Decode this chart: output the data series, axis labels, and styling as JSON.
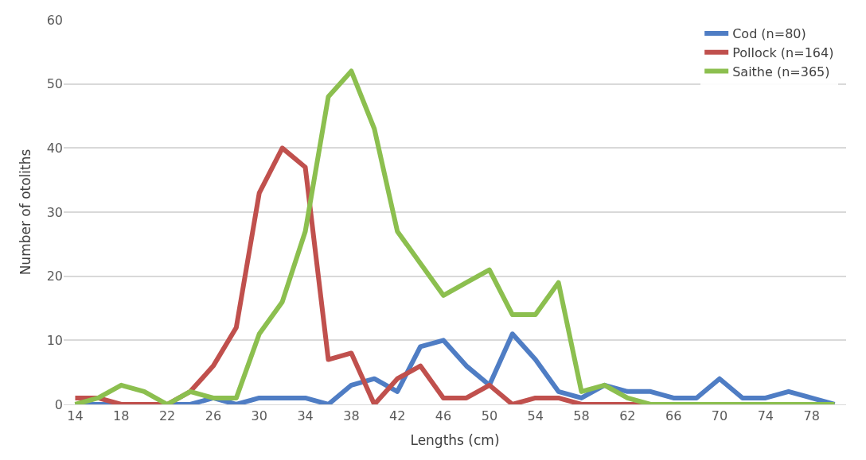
{
  "chart_data": {
    "type": "line",
    "xlabel": "Lengths (cm)",
    "ylabel": "Number of otoliths",
    "x": [
      14,
      16,
      18,
      20,
      22,
      24,
      26,
      28,
      30,
      32,
      34,
      36,
      38,
      40,
      42,
      44,
      46,
      48,
      50,
      52,
      54,
      56,
      58,
      60,
      62,
      64,
      66,
      68,
      70,
      72,
      74,
      76,
      78,
      80
    ],
    "xlim": [
      13,
      81
    ],
    "xticks": [
      14,
      18,
      22,
      26,
      30,
      34,
      38,
      42,
      46,
      50,
      54,
      58,
      62,
      66,
      70,
      74,
      78
    ],
    "ylim": [
      0,
      60
    ],
    "yticks": [
      0,
      10,
      20,
      30,
      40,
      50,
      60
    ],
    "grid": "y",
    "legend": "top right",
    "marker": "none",
    "line_style": "solid",
    "series": [
      {
        "name": "Cod (n=80)",
        "color": "#4f7dc4",
        "values": [
          0,
          0,
          0,
          0,
          0,
          0,
          1,
          0,
          1,
          1,
          1,
          0,
          3,
          4,
          2,
          9,
          10,
          6,
          3,
          11,
          7,
          2,
          1,
          3,
          2,
          2,
          1,
          1,
          4,
          1,
          1,
          2,
          1,
          0
        ]
      },
      {
        "name": "Pollock (n=164)",
        "color": "#c0504d",
        "values": [
          1,
          1,
          0,
          0,
          0,
          2,
          6,
          12,
          33,
          40,
          37,
          7,
          8,
          0,
          4,
          6,
          1,
          1,
          3,
          0,
          1,
          1,
          0,
          0,
          0,
          0,
          0,
          null,
          null,
          null,
          null,
          null,
          null,
          null
        ]
      },
      {
        "name": "Saithe (n=365)",
        "color": "#8cbf4f",
        "values": [
          0,
          1,
          3,
          2,
          0,
          2,
          1,
          1,
          11,
          16,
          27,
          48,
          52,
          43,
          27,
          22,
          17,
          19,
          21,
          14,
          14,
          19,
          2,
          3,
          1,
          0,
          0,
          0,
          0,
          0,
          0,
          0,
          0,
          0
        ]
      }
    ]
  }
}
